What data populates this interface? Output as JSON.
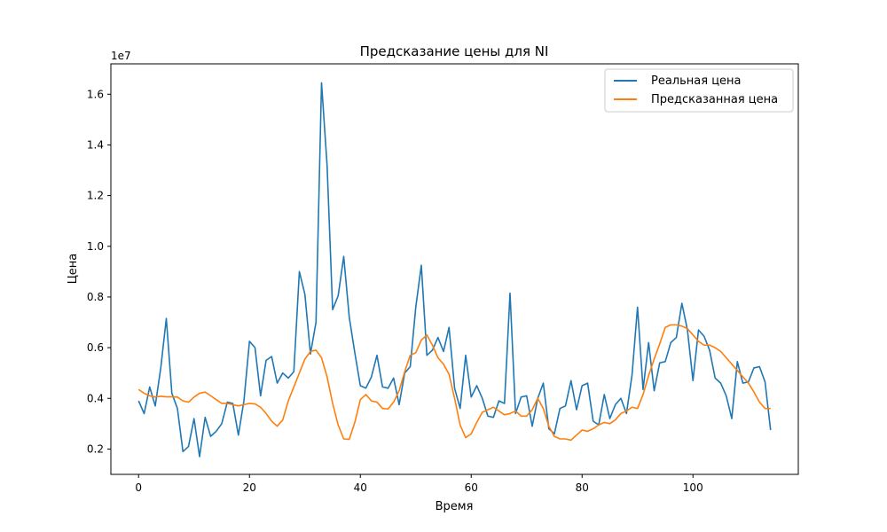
{
  "chart_data": {
    "type": "line",
    "title": "Предсказание цены для NI",
    "xlabel": "Время",
    "ylabel": "Цена",
    "y_multiplier_label": "1e7",
    "xlim": [
      -5,
      119
    ],
    "ylim": [
      1000000,
      17200000
    ],
    "x_ticks": [
      0,
      20,
      40,
      60,
      80,
      100
    ],
    "x_tick_labels": [
      "0",
      "20",
      "40",
      "60",
      "80",
      "100"
    ],
    "y_ticks": [
      2000000,
      4000000,
      6000000,
      8000000,
      10000000,
      12000000,
      14000000,
      16000000
    ],
    "y_tick_labels": [
      "0.2",
      "0.4",
      "0.6",
      "0.8",
      "1.0",
      "1.2",
      "1.4",
      "1.6"
    ],
    "grid": false,
    "legend_position": "top-right",
    "series": [
      {
        "name": "Реальная цена",
        "color": "#1f77b4",
        "values": [
          3900000,
          3400000,
          4450000,
          3700000,
          5200000,
          7150000,
          4200000,
          3600000,
          1900000,
          2100000,
          3200000,
          1700000,
          3250000,
          2500000,
          2700000,
          3000000,
          3850000,
          3800000,
          2550000,
          3900000,
          6250000,
          6000000,
          4100000,
          5500000,
          5650000,
          4600000,
          5000000,
          4800000,
          5050000,
          9000000,
          8100000,
          5750000,
          7000000,
          16450000,
          13200000,
          7500000,
          8050000,
          9600000,
          7200000,
          5800000,
          4500000,
          4400000,
          4850000,
          5700000,
          4450000,
          4400000,
          4800000,
          3750000,
          5000000,
          5250000,
          7600000,
          9250000,
          5700000,
          5900000,
          6400000,
          5850000,
          6800000,
          4400000,
          3600000,
          5700000,
          4050000,
          4500000,
          4000000,
          3300000,
          3250000,
          3900000,
          3800000,
          8150000,
          3400000,
          4050000,
          4100000,
          2900000,
          4000000,
          4600000,
          2800000,
          2600000,
          3600000,
          3700000,
          4700000,
          3550000,
          4500000,
          4600000,
          3100000,
          2950000,
          4150000,
          3200000,
          3750000,
          4000000,
          3400000,
          4900000,
          7600000,
          4350000,
          6200000,
          4300000,
          5400000,
          5450000,
          6200000,
          6400000,
          7750000,
          6700000,
          4700000,
          6700000,
          6450000,
          5900000,
          4800000,
          4600000,
          4100000,
          3200000,
          5450000,
          4600000,
          4650000,
          5200000,
          5250000,
          4650000,
          2750000
        ]
      },
      {
        "name": "Предсказанная цена",
        "color": "#ff7f0e",
        "values": [
          4350000,
          4200000,
          4100000,
          4050000,
          4080000,
          4060000,
          4060000,
          4050000,
          3900000,
          3850000,
          4050000,
          4200000,
          4250000,
          4100000,
          3950000,
          3800000,
          3800000,
          3750000,
          3700000,
          3750000,
          3800000,
          3780000,
          3650000,
          3400000,
          3100000,
          2900000,
          3150000,
          3900000,
          4450000,
          5000000,
          5550000,
          5850000,
          5900000,
          5600000,
          4850000,
          3800000,
          2950000,
          2400000,
          2380000,
          3050000,
          3950000,
          4150000,
          3900000,
          3850000,
          3600000,
          3580000,
          3850000,
          4300000,
          5050000,
          5700000,
          5800000,
          6300000,
          6500000,
          6100000,
          5600000,
          5350000,
          4950000,
          4000000,
          2950000,
          2450000,
          2600000,
          3050000,
          3450000,
          3550000,
          3650000,
          3500000,
          3350000,
          3400000,
          3500000,
          3300000,
          3300000,
          3550000,
          4000000,
          3600000,
          2900000,
          2500000,
          2400000,
          2400000,
          2350000,
          2550000,
          2750000,
          2700000,
          2800000,
          2950000,
          3050000,
          3000000,
          3150000,
          3400000,
          3500000,
          3650000,
          3600000,
          4150000,
          4900000,
          5550000,
          6150000,
          6800000,
          6900000,
          6900000,
          6850000,
          6750000,
          6500000,
          6250000,
          6100000,
          6100000,
          6000000,
          5850000,
          5600000,
          5350000,
          5100000,
          4850000,
          4600000,
          4250000,
          3850000,
          3600000,
          3600000
        ]
      }
    ]
  }
}
